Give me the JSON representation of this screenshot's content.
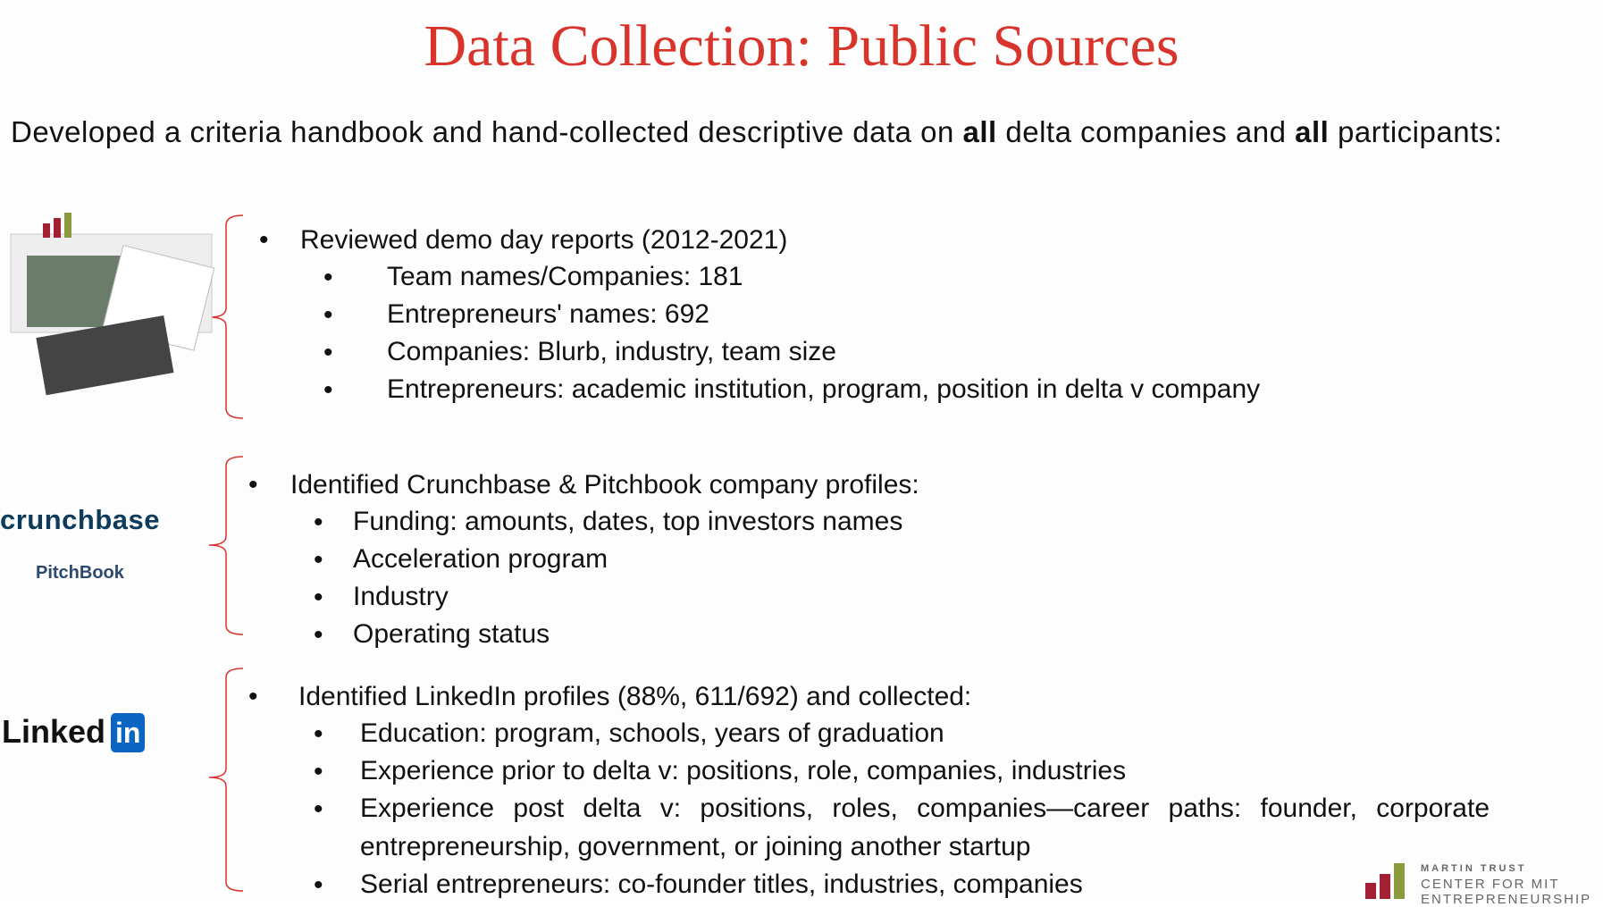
{
  "title": "Data Collection: Public Sources",
  "intro": [
    "Developed a criteria handbook and hand-collected descriptive data on ",
    "all",
    " delta companies and ",
    "all",
    " participants:"
  ],
  "sections": [
    {
      "heading": "Reviewed demo day reports (2012-2021)",
      "items": [
        "Team names/Companies: 181",
        "Entrepreneurs' names: 692",
        "Companies: Blurb, industry, team size",
        "Entrepreneurs: academic institution, program,  position in delta v company"
      ]
    },
    {
      "logos": [
        "crunchbase",
        "PitchBook"
      ],
      "heading": "Identified Crunchbase & Pitchbook company profiles:",
      "items": [
        "Funding: amounts, dates, top investors names",
        "Acceleration program",
        "Industry",
        "Operating status"
      ]
    },
    {
      "logos": [
        "Linked",
        "in"
      ],
      "heading": "Identified LinkedIn profiles (88%, 611/692) and collected:",
      "items": [
        "Education: program, schools, years of graduation",
        "Experience prior to delta v: positions, role, companies, industries",
        "Experience post delta v: positions, roles, companies—career paths: founder, corporate entrepreneurship, government, or joining another startup",
        "Serial entrepreneurs: co-founder titles, industries, companies"
      ]
    }
  ],
  "footer_logo": [
    "MARTIN TRUST",
    "CENTER FOR MIT",
    "ENTREPRENEURSHIP"
  ]
}
